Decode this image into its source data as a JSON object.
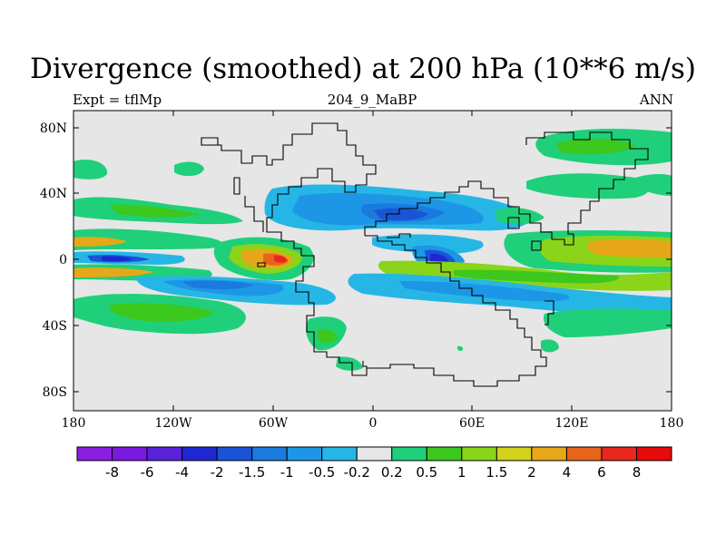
{
  "title": "Divergence (smoothed) at 200 hPa (10**6 m/s)",
  "subtitle_left": "Expt = tflMp",
  "subtitle_center": "204_9_MaBP",
  "subtitle_right": "ANN",
  "lon_labels": [
    "180",
    "120W",
    "60W",
    "0",
    "60E",
    "120E",
    "180"
  ],
  "lat_labels": [
    "80N",
    "40N",
    "0",
    "40S",
    "80S"
  ],
  "colorbar": {
    "labels": [
      "-8",
      "-6",
      "-4",
      "-2",
      "-1.5",
      "-1",
      "-0.5",
      "-0.2",
      "0.2",
      "0.5",
      "1",
      "1.5",
      "2",
      "4",
      "6",
      "8"
    ],
    "colors": [
      "#8a1ee0",
      "#7a1ae0",
      "#5a22d8",
      "#1e28d2",
      "#1a54d6",
      "#1a7ade",
      "#1e96e6",
      "#26b6e6",
      "#e6e6e6",
      "#20cf7a",
      "#3cc81c",
      "#8ad41a",
      "#d2d21a",
      "#e6a81a",
      "#e8641a",
      "#e8281e",
      "#e60a0a"
    ]
  }
}
